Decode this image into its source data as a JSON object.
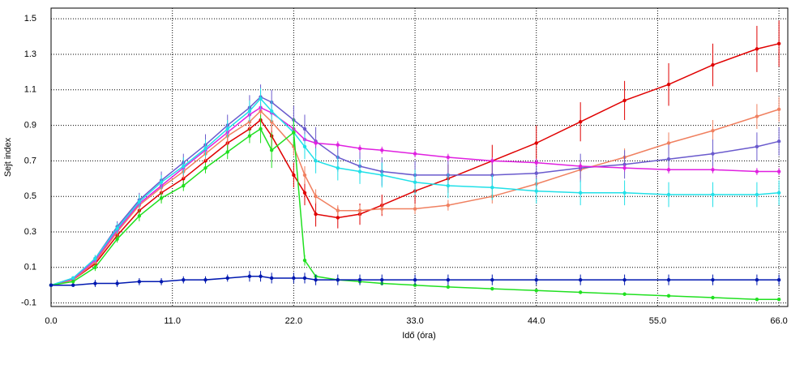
{
  "chart_data": {
    "type": "line",
    "x_label": "Idő (óra)",
    "y_label": "Sejt index",
    "xlim": [
      0,
      66.8
    ],
    "ylim": [
      -0.12,
      1.56
    ],
    "xticks": [
      {
        "value": 0,
        "label": "0.0"
      },
      {
        "value": 11,
        "label": "11.0"
      },
      {
        "value": 22,
        "label": "22.0"
      },
      {
        "value": 33,
        "label": "33.0"
      },
      {
        "value": 44,
        "label": "44.0"
      },
      {
        "value": 55,
        "label": "55.0"
      },
      {
        "value": 66,
        "label": "66.0"
      }
    ],
    "yticks": [
      -0.1,
      0.1,
      0.3,
      0.5,
      0.7,
      0.9,
      1.1,
      1.3,
      1.5
    ],
    "grid": true,
    "x": [
      0,
      2,
      4,
      6,
      8,
      10,
      12,
      14,
      16,
      18,
      19,
      20,
      22,
      23,
      24,
      26,
      28,
      30,
      33,
      36,
      40,
      44,
      48,
      52,
      56,
      60,
      64,
      66
    ],
    "series": [
      {
        "color": "#e00000",
        "values": [
          0,
          0.03,
          0.12,
          0.28,
          0.42,
          0.52,
          0.6,
          0.7,
          0.8,
          0.88,
          0.93,
          0.84,
          0.62,
          0.52,
          0.4,
          0.38,
          0.4,
          0.45,
          0.53,
          0.6,
          0.7,
          0.8,
          0.92,
          1.04,
          1.13,
          1.24,
          1.33,
          1.36
        ],
        "errors": [
          0,
          0.01,
          0.02,
          0.03,
          0.04,
          0.05,
          0.05,
          0.05,
          0.05,
          0.06,
          0.06,
          0.07,
          0.07,
          0.07,
          0.07,
          0.06,
          0.06,
          0.06,
          0.07,
          0.08,
          0.09,
          0.1,
          0.11,
          0.11,
          0.12,
          0.12,
          0.13,
          0.13
        ]
      },
      {
        "color": "#f08060",
        "values": [
          0,
          0.03,
          0.13,
          0.3,
          0.45,
          0.55,
          0.64,
          0.74,
          0.84,
          0.92,
          0.98,
          0.92,
          0.78,
          0.62,
          0.5,
          0.42,
          0.42,
          0.43,
          0.43,
          0.45,
          0.5,
          0.57,
          0.65,
          0.72,
          0.8,
          0.87,
          0.95,
          0.99
        ],
        "errors": [
          0,
          0.01,
          0.02,
          0.03,
          0.03,
          0.04,
          0.04,
          0.04,
          0.05,
          0.05,
          0.05,
          0.05,
          0.05,
          0.05,
          0.04,
          0.03,
          0.03,
          0.03,
          0.03,
          0.03,
          0.04,
          0.04,
          0.05,
          0.05,
          0.06,
          0.06,
          0.07,
          0.07
        ]
      },
      {
        "color": "#6a5acd",
        "values": [
          0,
          0.04,
          0.15,
          0.33,
          0.48,
          0.59,
          0.69,
          0.79,
          0.9,
          1.0,
          1.06,
          1.03,
          0.93,
          0.88,
          0.81,
          0.72,
          0.67,
          0.64,
          0.62,
          0.62,
          0.62,
          0.63,
          0.66,
          0.68,
          0.71,
          0.74,
          0.78,
          0.81
        ],
        "errors": [
          0,
          0.01,
          0.02,
          0.03,
          0.04,
          0.05,
          0.05,
          0.06,
          0.06,
          0.07,
          0.07,
          0.07,
          0.08,
          0.08,
          0.08,
          0.08,
          0.08,
          0.08,
          0.08,
          0.08,
          0.08,
          0.08,
          0.08,
          0.08,
          0.08,
          0.08,
          0.08,
          0.08
        ]
      },
      {
        "color": "#e020e0",
        "values": [
          0,
          0.035,
          0.14,
          0.31,
          0.46,
          0.56,
          0.66,
          0.76,
          0.86,
          0.96,
          1.0,
          0.97,
          0.88,
          0.82,
          0.8,
          0.79,
          0.77,
          0.76,
          0.74,
          0.72,
          0.7,
          0.69,
          0.67,
          0.66,
          0.65,
          0.65,
          0.64,
          0.64
        ],
        "errors": [
          0,
          0.01,
          0.01,
          0.02,
          0.02,
          0.02,
          0.02,
          0.02,
          0.02,
          0.02,
          0.02,
          0.02,
          0.02,
          0.02,
          0.02,
          0.02,
          0.02,
          0.02,
          0.02,
          0.02,
          0.02,
          0.02,
          0.02,
          0.02,
          0.02,
          0.02,
          0.02,
          0.02
        ]
      },
      {
        "color": "#20e0e8",
        "values": [
          0,
          0.04,
          0.15,
          0.32,
          0.47,
          0.58,
          0.67,
          0.77,
          0.88,
          0.98,
          1.05,
          0.98,
          0.86,
          0.78,
          0.7,
          0.66,
          0.64,
          0.62,
          0.58,
          0.56,
          0.55,
          0.53,
          0.52,
          0.52,
          0.51,
          0.51,
          0.51,
          0.52
        ],
        "errors": [
          0,
          0.01,
          0.02,
          0.03,
          0.04,
          0.04,
          0.05,
          0.05,
          0.05,
          0.06,
          0.06,
          0.06,
          0.07,
          0.07,
          0.07,
          0.07,
          0.07,
          0.07,
          0.07,
          0.07,
          0.07,
          0.07,
          0.07,
          0.07,
          0.07,
          0.07,
          0.07,
          0.07
        ]
      },
      {
        "color": "#20e020",
        "values": [
          0,
          0.02,
          0.1,
          0.26,
          0.39,
          0.49,
          0.56,
          0.66,
          0.75,
          0.84,
          0.88,
          0.76,
          0.86,
          0.14,
          0.05,
          0.03,
          0.02,
          0.01,
          0.0,
          -0.01,
          -0.02,
          -0.03,
          -0.04,
          -0.05,
          -0.06,
          -0.07,
          -0.08,
          -0.08
        ],
        "errors": [
          0,
          0.01,
          0.02,
          0.02,
          0.03,
          0.03,
          0.03,
          0.03,
          0.04,
          0.04,
          0.08,
          0.1,
          0.08,
          0.03,
          0.01,
          0.01,
          0.01,
          0.01,
          0.01,
          0.01,
          0.01,
          0.01,
          0.01,
          0.01,
          0.01,
          0.01,
          0.01,
          0.01
        ]
      },
      {
        "color": "#0018b0",
        "values": [
          0,
          0,
          0.01,
          0.01,
          0.02,
          0.02,
          0.03,
          0.03,
          0.04,
          0.05,
          0.05,
          0.04,
          0.04,
          0.04,
          0.03,
          0.03,
          0.03,
          0.03,
          0.03,
          0.03,
          0.03,
          0.03,
          0.03,
          0.03,
          0.03,
          0.03,
          0.03,
          0.03
        ],
        "errors": [
          0,
          0.01,
          0.02,
          0.02,
          0.02,
          0.02,
          0.02,
          0.02,
          0.02,
          0.03,
          0.03,
          0.03,
          0.03,
          0.03,
          0.03,
          0.03,
          0.03,
          0.03,
          0.03,
          0.03,
          0.03,
          0.03,
          0.03,
          0.03,
          0.03,
          0.03,
          0.03,
          0.03
        ]
      }
    ]
  }
}
